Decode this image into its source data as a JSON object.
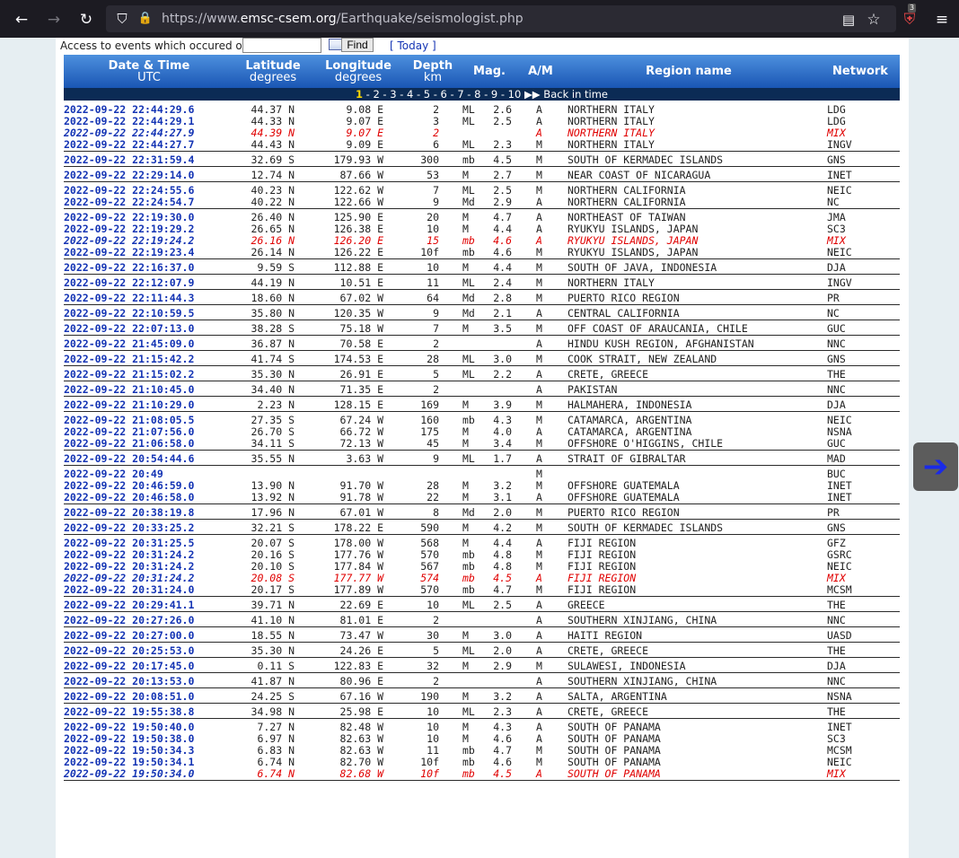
{
  "browser": {
    "url_prefix": "https://www.",
    "url_host": "emsc-csem.org",
    "url_path": "/Earthquake/seismologist.php",
    "extension_badge": "3"
  },
  "search": {
    "label": "Access to events which occured on",
    "find_label": "Find",
    "today_label": "[ Today ]"
  },
  "table_header": {
    "date_title": "Date & Time",
    "date_sub": "UTC",
    "lat_title": "Latitude",
    "lat_sub": "degrees",
    "lon_title": "Longitude",
    "lon_sub": "degrees",
    "depth_title": "Depth",
    "depth_sub": "km",
    "mag": "Mag.",
    "am": "A/M",
    "region": "Region name",
    "network": "Network"
  },
  "pagination": {
    "current": "1",
    "rest": " - 2 - 3 - 4 - 5 - 6 - 7 - 8 - 9 - 10 ",
    "arrows": "▶▶",
    "back": " Back in time"
  },
  "events": [
    [
      {
        "dt": "2022-09-22  22:44:29.6",
        "lat": "44.37 N",
        "lon": "9.08 E",
        "dep": "2",
        "mt": "ML",
        "mag": "2.6",
        "am": "A",
        "reg": "NORTHERN ITALY",
        "net": "LDG"
      },
      {
        "dt": "2022-09-22  22:44:29.1",
        "lat": "44.33 N",
        "lon": "9.07 E",
        "dep": "3",
        "mt": "ML",
        "mag": "2.5",
        "am": "A",
        "reg": "NORTHERN ITALY",
        "net": "LDG"
      },
      {
        "dt": "2022-09-22  22:44:27.9",
        "lat": "44.39 N",
        "lon": "9.07 E",
        "dep": "2",
        "mt": "",
        "mag": "",
        "am": "A",
        "reg": "NORTHERN ITALY",
        "net": "MIX",
        "mix": true
      },
      {
        "dt": "2022-09-22  22:44:27.7",
        "lat": "44.43 N",
        "lon": "9.09 E",
        "dep": "6",
        "mt": "ML",
        "mag": "2.3",
        "am": "M",
        "reg": "NORTHERN ITALY",
        "net": "INGV"
      }
    ],
    [
      {
        "dt": "2022-09-22  22:31:59.4",
        "lat": "32.69 S",
        "lon": "179.93 W",
        "dep": "300",
        "mt": "mb",
        "mag": "4.5",
        "am": "M",
        "reg": "SOUTH OF KERMADEC ISLANDS",
        "net": "GNS"
      }
    ],
    [
      {
        "dt": "2022-09-22  22:29:14.0",
        "lat": "12.74 N",
        "lon": "87.66 W",
        "dep": "53",
        "mt": "M",
        "mag": "2.7",
        "am": "M",
        "reg": "NEAR COAST OF NICARAGUA",
        "net": "INET"
      }
    ],
    [
      {
        "dt": "2022-09-22  22:24:55.6",
        "lat": "40.23 N",
        "lon": "122.62 W",
        "dep": "7",
        "mt": "ML",
        "mag": "2.5",
        "am": "M",
        "reg": "NORTHERN CALIFORNIA",
        "net": "NEIC"
      },
      {
        "dt": "2022-09-22  22:24:54.7",
        "lat": "40.22 N",
        "lon": "122.66 W",
        "dep": "9",
        "mt": "Md",
        "mag": "2.9",
        "am": "A",
        "reg": "NORTHERN CALIFORNIA",
        "net": "NC"
      }
    ],
    [
      {
        "dt": "2022-09-22  22:19:30.0",
        "lat": "26.40 N",
        "lon": "125.90 E",
        "dep": "20",
        "mt": "M",
        "mag": "4.7",
        "am": "A",
        "reg": "NORTHEAST OF TAIWAN",
        "net": "JMA"
      },
      {
        "dt": "2022-09-22  22:19:29.2",
        "lat": "26.65 N",
        "lon": "126.38 E",
        "dep": "10",
        "mt": "M",
        "mag": "4.4",
        "am": "A",
        "reg": "RYUKYU ISLANDS, JAPAN",
        "net": "SC3"
      },
      {
        "dt": "2022-09-22  22:19:24.2",
        "lat": "26.16 N",
        "lon": "126.20 E",
        "dep": "15",
        "mt": "mb",
        "mag": "4.6",
        "am": "A",
        "reg": "RYUKYU ISLANDS, JAPAN",
        "net": "MIX",
        "mix": true
      },
      {
        "dt": "2022-09-22  22:19:23.4",
        "lat": "26.14 N",
        "lon": "126.22 E",
        "dep": "10f",
        "mt": "mb",
        "mag": "4.6",
        "am": "M",
        "reg": "RYUKYU ISLANDS, JAPAN",
        "net": "NEIC"
      }
    ],
    [
      {
        "dt": "2022-09-22  22:16:37.0",
        "lat": "9.59 S",
        "lon": "112.88 E",
        "dep": "10",
        "mt": "M",
        "mag": "4.4",
        "am": "M",
        "reg": "SOUTH OF JAVA, INDONESIA",
        "net": "DJA"
      }
    ],
    [
      {
        "dt": "2022-09-22  22:12:07.9",
        "lat": "44.19 N",
        "lon": "10.51 E",
        "dep": "11",
        "mt": "ML",
        "mag": "2.4",
        "am": "M",
        "reg": "NORTHERN ITALY",
        "net": "INGV"
      }
    ],
    [
      {
        "dt": "2022-09-22  22:11:44.3",
        "lat": "18.60 N",
        "lon": "67.02 W",
        "dep": "64",
        "mt": "Md",
        "mag": "2.8",
        "am": "M",
        "reg": "PUERTO RICO REGION",
        "net": "PR"
      }
    ],
    [
      {
        "dt": "2022-09-22  22:10:59.5",
        "lat": "35.80 N",
        "lon": "120.35 W",
        "dep": "9",
        "mt": "Md",
        "mag": "2.1",
        "am": "A",
        "reg": "CENTRAL CALIFORNIA",
        "net": "NC"
      }
    ],
    [
      {
        "dt": "2022-09-22  22:07:13.0",
        "lat": "38.28 S",
        "lon": "75.18 W",
        "dep": "7",
        "mt": "M",
        "mag": "3.5",
        "am": "M",
        "reg": "OFF COAST OF ARAUCANIA, CHILE",
        "net": "GUC"
      }
    ],
    [
      {
        "dt": "2022-09-22  21:45:09.0",
        "lat": "36.87 N",
        "lon": "70.58 E",
        "dep": "2",
        "mt": "",
        "mag": "",
        "am": "A",
        "reg": "HINDU KUSH REGION, AFGHANISTAN",
        "net": "NNC"
      }
    ],
    [
      {
        "dt": "2022-09-22  21:15:42.2",
        "lat": "41.74 S",
        "lon": "174.53 E",
        "dep": "28",
        "mt": "ML",
        "mag": "3.0",
        "am": "M",
        "reg": "COOK STRAIT, NEW ZEALAND",
        "net": "GNS"
      }
    ],
    [
      {
        "dt": "2022-09-22  21:15:02.2",
        "lat": "35.30 N",
        "lon": "26.91 E",
        "dep": "5",
        "mt": "ML",
        "mag": "2.2",
        "am": "A",
        "reg": "CRETE, GREECE",
        "net": "THE"
      }
    ],
    [
      {
        "dt": "2022-09-22  21:10:45.0",
        "lat": "34.40 N",
        "lon": "71.35 E",
        "dep": "2",
        "mt": "",
        "mag": "",
        "am": "A",
        "reg": "PAKISTAN",
        "net": "NNC"
      }
    ],
    [
      {
        "dt": "2022-09-22  21:10:29.0",
        "lat": "2.23 N",
        "lon": "128.15 E",
        "dep": "169",
        "mt": "M",
        "mag": "3.9",
        "am": "M",
        "reg": "HALMAHERA, INDONESIA",
        "net": "DJA"
      }
    ],
    [
      {
        "dt": "2022-09-22  21:08:05.5",
        "lat": "27.35 S",
        "lon": "67.24 W",
        "dep": "160",
        "mt": "mb",
        "mag": "4.3",
        "am": "M",
        "reg": "CATAMARCA, ARGENTINA",
        "net": "NEIC"
      },
      {
        "dt": "2022-09-22  21:07:56.0",
        "lat": "26.70 S",
        "lon": "66.72 W",
        "dep": "175",
        "mt": "M",
        "mag": "4.0",
        "am": "A",
        "reg": "CATAMARCA, ARGENTINA",
        "net": "NSNA"
      },
      {
        "dt": "2022-09-22  21:06:58.0",
        "lat": "34.11 S",
        "lon": "72.13 W",
        "dep": "45",
        "mt": "M",
        "mag": "3.4",
        "am": "M",
        "reg": "OFFSHORE O'HIGGINS, CHILE",
        "net": "GUC"
      }
    ],
    [
      {
        "dt": "2022-09-22  20:54:44.6",
        "lat": "35.55 N",
        "lon": "3.63 W",
        "dep": "9",
        "mt": "ML",
        "mag": "1.7",
        "am": "A",
        "reg": "STRAIT OF GIBRALTAR",
        "net": "MAD"
      }
    ],
    [
      {
        "dt": "2022-09-22  20:49",
        "lat": "",
        "lon": "",
        "dep": "",
        "mt": "",
        "mag": "",
        "am": "M",
        "reg": "",
        "net": "BUC"
      },
      {
        "dt": "2022-09-22  20:46:59.0",
        "lat": "13.90 N",
        "lon": "91.70 W",
        "dep": "28",
        "mt": "M",
        "mag": "3.2",
        "am": "M",
        "reg": "OFFSHORE GUATEMALA",
        "net": "INET"
      },
      {
        "dt": "2022-09-22  20:46:58.0",
        "lat": "13.92 N",
        "lon": "91.78 W",
        "dep": "22",
        "mt": "M",
        "mag": "3.1",
        "am": "A",
        "reg": "OFFSHORE GUATEMALA",
        "net": "INET"
      }
    ],
    [
      {
        "dt": "2022-09-22  20:38:19.8",
        "lat": "17.96 N",
        "lon": "67.01 W",
        "dep": "8",
        "mt": "Md",
        "mag": "2.0",
        "am": "M",
        "reg": "PUERTO RICO REGION",
        "net": "PR"
      }
    ],
    [
      {
        "dt": "2022-09-22  20:33:25.2",
        "lat": "32.21 S",
        "lon": "178.22 E",
        "dep": "590",
        "mt": "M",
        "mag": "4.2",
        "am": "M",
        "reg": "SOUTH OF KERMADEC ISLANDS",
        "net": "GNS"
      }
    ],
    [
      {
        "dt": "2022-09-22  20:31:25.5",
        "lat": "20.07 S",
        "lon": "178.00 W",
        "dep": "568",
        "mt": "M",
        "mag": "4.4",
        "am": "A",
        "reg": "FIJI REGION",
        "net": "GFZ"
      },
      {
        "dt": "2022-09-22  20:31:24.2",
        "lat": "20.16 S",
        "lon": "177.76 W",
        "dep": "570",
        "mt": "mb",
        "mag": "4.8",
        "am": "M",
        "reg": "FIJI REGION",
        "net": "GSRC"
      },
      {
        "dt": "2022-09-22  20:31:24.2",
        "lat": "20.10 S",
        "lon": "177.84 W",
        "dep": "567",
        "mt": "mb",
        "mag": "4.8",
        "am": "M",
        "reg": "FIJI REGION",
        "net": "NEIC"
      },
      {
        "dt": "2022-09-22  20:31:24.2",
        "lat": "20.08 S",
        "lon": "177.77 W",
        "dep": "574",
        "mt": "mb",
        "mag": "4.5",
        "am": "A",
        "reg": "FIJI REGION",
        "net": "MIX",
        "mix": true
      },
      {
        "dt": "2022-09-22  20:31:24.0",
        "lat": "20.17 S",
        "lon": "177.89 W",
        "dep": "570",
        "mt": "mb",
        "mag": "4.7",
        "am": "M",
        "reg": "FIJI REGION",
        "net": "MCSM"
      }
    ],
    [
      {
        "dt": "2022-09-22  20:29:41.1",
        "lat": "39.71 N",
        "lon": "22.69 E",
        "dep": "10",
        "mt": "ML",
        "mag": "2.5",
        "am": "A",
        "reg": "GREECE",
        "net": "THE"
      }
    ],
    [
      {
        "dt": "2022-09-22  20:27:26.0",
        "lat": "41.10 N",
        "lon": "81.01 E",
        "dep": "2",
        "mt": "",
        "mag": "",
        "am": "A",
        "reg": "SOUTHERN XINJIANG, CHINA",
        "net": "NNC"
      }
    ],
    [
      {
        "dt": "2022-09-22  20:27:00.0",
        "lat": "18.55 N",
        "lon": "73.47 W",
        "dep": "30",
        "mt": "M",
        "mag": "3.0",
        "am": "A",
        "reg": "HAITI REGION",
        "net": "UASD"
      }
    ],
    [
      {
        "dt": "2022-09-22  20:25:53.0",
        "lat": "35.30 N",
        "lon": "24.26 E",
        "dep": "5",
        "mt": "ML",
        "mag": "2.0",
        "am": "A",
        "reg": "CRETE, GREECE",
        "net": "THE"
      }
    ],
    [
      {
        "dt": "2022-09-22  20:17:45.0",
        "lat": "0.11 S",
        "lon": "122.83 E",
        "dep": "32",
        "mt": "M",
        "mag": "2.9",
        "am": "M",
        "reg": "SULAWESI, INDONESIA",
        "net": "DJA"
      }
    ],
    [
      {
        "dt": "2022-09-22  20:13:53.0",
        "lat": "41.87 N",
        "lon": "80.96 E",
        "dep": "2",
        "mt": "",
        "mag": "",
        "am": "A",
        "reg": "SOUTHERN XINJIANG, CHINA",
        "net": "NNC"
      }
    ],
    [
      {
        "dt": "2022-09-22  20:08:51.0",
        "lat": "24.25 S",
        "lon": "67.16 W",
        "dep": "190",
        "mt": "M",
        "mag": "3.2",
        "am": "A",
        "reg": "SALTA, ARGENTINA",
        "net": "NSNA"
      }
    ],
    [
      {
        "dt": "2022-09-22  19:55:38.8",
        "lat": "34.98 N",
        "lon": "25.98 E",
        "dep": "10",
        "mt": "ML",
        "mag": "2.3",
        "am": "A",
        "reg": "CRETE, GREECE",
        "net": "THE"
      }
    ],
    [
      {
        "dt": "2022-09-22  19:50:40.0",
        "lat": "7.27 N",
        "lon": "82.48 W",
        "dep": "10",
        "mt": "M",
        "mag": "4.3",
        "am": "A",
        "reg": "SOUTH OF PANAMA",
        "net": "INET"
      },
      {
        "dt": "2022-09-22  19:50:38.0",
        "lat": "6.97 N",
        "lon": "82.63 W",
        "dep": "10",
        "mt": "M",
        "mag": "4.6",
        "am": "A",
        "reg": "SOUTH OF PANAMA",
        "net": "SC3"
      },
      {
        "dt": "2022-09-22  19:50:34.3",
        "lat": "6.83 N",
        "lon": "82.63 W",
        "dep": "11",
        "mt": "mb",
        "mag": "4.7",
        "am": "M",
        "reg": "SOUTH OF PANAMA",
        "net": "MCSM"
      },
      {
        "dt": "2022-09-22  19:50:34.1",
        "lat": "6.74 N",
        "lon": "82.70 W",
        "dep": "10f",
        "mt": "mb",
        "mag": "4.6",
        "am": "M",
        "reg": "SOUTH OF PANAMA",
        "net": "NEIC"
      },
      {
        "dt": "2022-09-22  19:50:34.0",
        "lat": "6.74 N",
        "lon": "82.68 W",
        "dep": "10f",
        "mt": "mb",
        "mag": "4.5",
        "am": "A",
        "reg": "SOUTH OF PANAMA",
        "net": "MIX",
        "mix": true
      }
    ]
  ]
}
